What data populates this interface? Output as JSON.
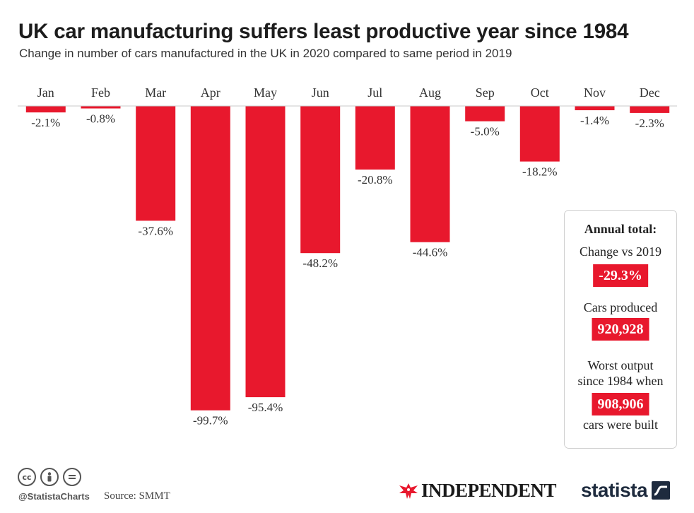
{
  "title": "UK car manufacturing suffers least productive year since 1984",
  "subtitle": "Change in number of cars manufactured in the UK in 2020 compared to same period in 2019",
  "chart_data": {
    "type": "bar",
    "title": "UK car manufacturing suffers least productive year since 1984",
    "subtitle": "Change in number of cars manufactured in the UK in 2020 compared to same period in 2019",
    "categories": [
      "Jan",
      "Feb",
      "Mar",
      "Apr",
      "May",
      "Jun",
      "Jul",
      "Aug",
      "Sep",
      "Oct",
      "Nov",
      "Dec"
    ],
    "values": [
      -2.1,
      -0.8,
      -37.6,
      -99.7,
      -95.4,
      -48.2,
      -20.8,
      -44.6,
      -5.0,
      -18.2,
      -1.4,
      -2.3
    ],
    "value_labels": [
      "-2.1%",
      "-0.8%",
      "-37.6%",
      "-99.7%",
      "-95.4%",
      "-48.2%",
      "-20.8%",
      "-44.6%",
      "-5.0%",
      "-18.2%",
      "-1.4%",
      "-2.3%"
    ],
    "xlabel": "",
    "ylabel": "",
    "ylim": [
      -100,
      0
    ],
    "unit": "%",
    "grid": false,
    "color": "#e8182d"
  },
  "annual": {
    "heading": "Annual total:",
    "change_label": "Change vs 2019",
    "change_value": "-29.3%",
    "produced_label": "Cars produced",
    "produced_value": "920,928",
    "worst_line1": "Worst output",
    "worst_line2": "since 1984 when",
    "worst_value": "908,906",
    "worst_suffix": "cars were built"
  },
  "footer": {
    "handle": "@StatistaCharts",
    "source": "Source: SMMT",
    "publisher": "INDEPENDENT",
    "brand": "statista",
    "cc_icons": [
      "cc-icon",
      "person-icon",
      "equals-icon"
    ]
  },
  "colors": {
    "bar": "#e8182d",
    "badge": "#e8182d",
    "title": "#1c1c1c",
    "brand": "#1e2b3e"
  }
}
